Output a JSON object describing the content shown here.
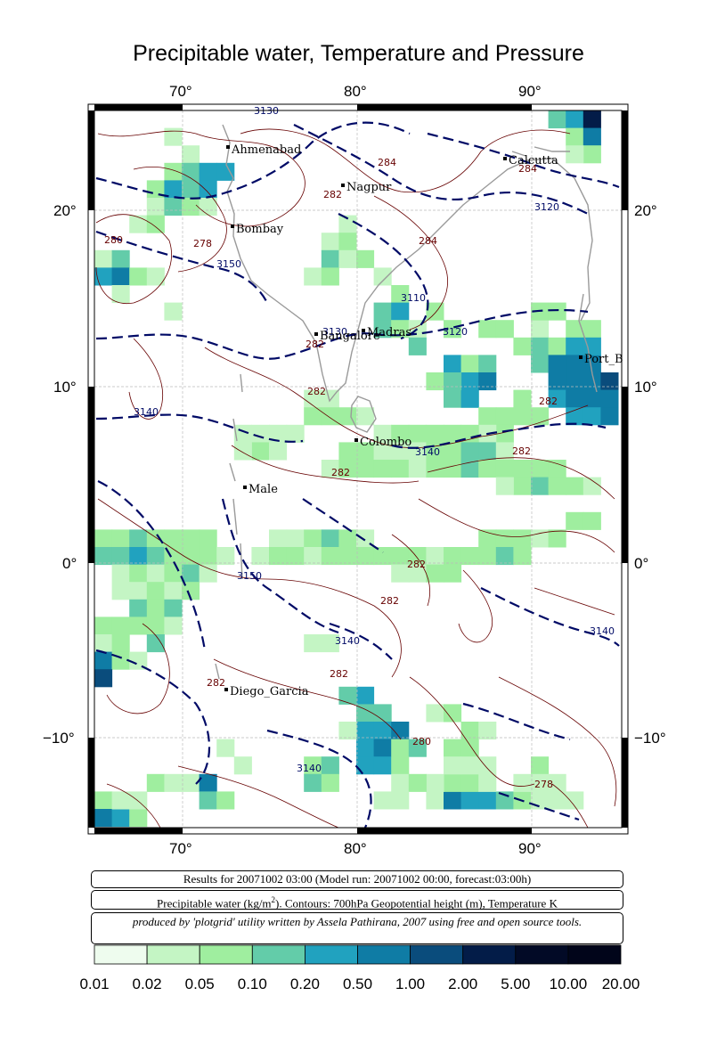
{
  "title": "Precipitable water, Temperature and Pressure",
  "axes": {
    "lon_labels": [
      "70°",
      "80°",
      "90°"
    ],
    "lat_labels": [
      "20°",
      "10°",
      "0°",
      "−10°"
    ]
  },
  "cities": [
    {
      "name": "Ahmenabad"
    },
    {
      "name": "Calcutta"
    },
    {
      "name": "Nagpur"
    },
    {
      "name": "Bombay"
    },
    {
      "name": "Bangalore"
    },
    {
      "name": "Madras"
    },
    {
      "name": "Port_B"
    },
    {
      "name": "Colombo"
    },
    {
      "name": "Male"
    },
    {
      "name": "Diego_Garcia"
    }
  ],
  "contour_labels": {
    "height": [
      "3130",
      "3120",
      "3110",
      "3150",
      "3140",
      "3120",
      "3130",
      "3140",
      "3140",
      "3150",
      "3140",
      "3140",
      "3140"
    ],
    "temperature": [
      "284",
      "282",
      "284",
      "278",
      "280",
      "282",
      "282",
      "282",
      "282",
      "282",
      "282",
      "282",
      "282",
      "282",
      "280",
      "278"
    ]
  },
  "info": {
    "line1": "Results for 20071002 03:00 (Model run: 20071002 00:00, forecast:03:00h)",
    "line2_a": "Precipitable water (kg/m",
    "line2_sup": "2",
    "line2_b": ").  Contours: 700hPa Geopotential height (m), Temperature K",
    "credit": "produced by 'plotgrid' utility written by Assela Pathirana, 2007 using free and open source tools."
  },
  "colorbar": {
    "ticks": [
      "0.01",
      "0.02",
      "0.05",
      "0.10",
      "0.20",
      "0.50",
      "1.00",
      "2.00",
      "5.00",
      "10.00",
      "20.00"
    ],
    "colors": [
      "#eefcee",
      "#c4f5c4",
      "#9fee9f",
      "#63cca9",
      "#21a2bf",
      "#0f7ca5",
      "#0a4c7c",
      "#031c48",
      "#020a26",
      "#01051a"
    ]
  },
  "colors": {
    "height_contour": "#000a66",
    "temp_contour": "#660000",
    "coast": "#999999"
  }
}
